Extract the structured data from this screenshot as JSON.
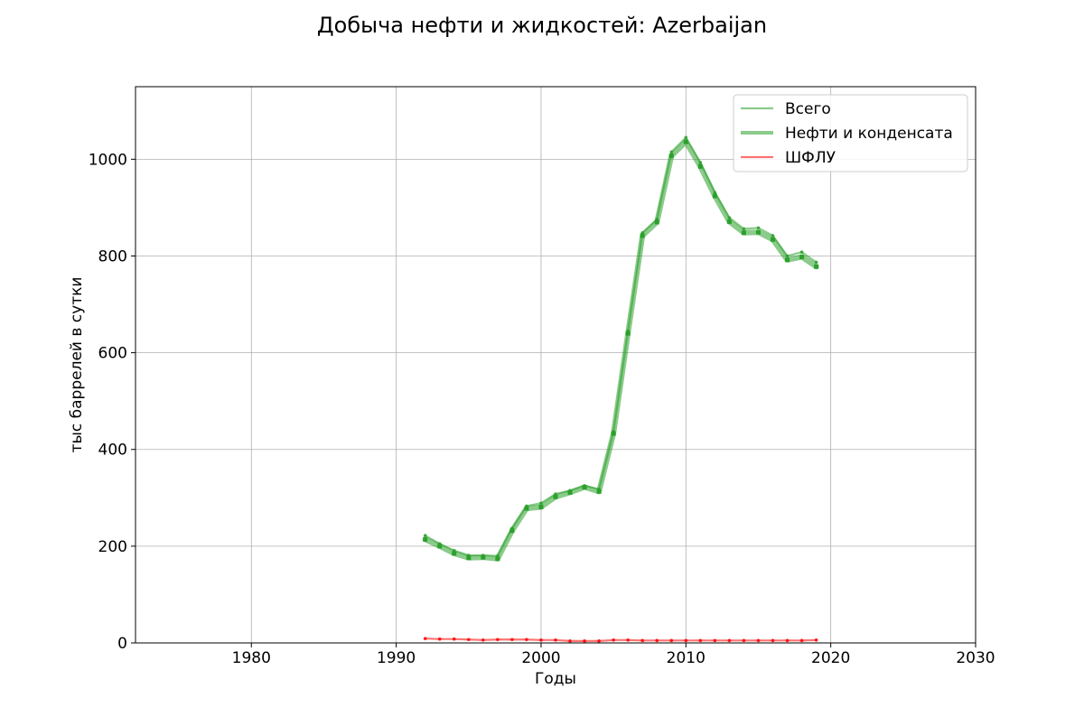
{
  "chart_data": {
    "type": "line",
    "title": "Добыча нефти и жидкостей: Azerbaijan",
    "xlabel": "Годы",
    "ylabel": "тыс баррелей в сутки",
    "xlim": [
      1972,
      2030
    ],
    "ylim": [
      0,
      1150
    ],
    "xticks": [
      1980,
      1990,
      2000,
      2010,
      2020,
      2030
    ],
    "yticks": [
      0,
      200,
      400,
      600,
      800,
      1000
    ],
    "grid": true,
    "legend_position": "top-right",
    "x": [
      1992,
      1993,
      1994,
      1995,
      1996,
      1997,
      1998,
      1999,
      2000,
      2001,
      2002,
      2003,
      2004,
      2005,
      2006,
      2007,
      2008,
      2009,
      2010,
      2011,
      2012,
      2013,
      2014,
      2015,
      2016,
      2017,
      2018,
      2019
    ],
    "series": [
      {
        "name": "Всего",
        "color": "#2ca02c",
        "style": "thin",
        "values": [
          222,
          205,
          191,
          181,
          181,
          180,
          237,
          283,
          289,
          308,
          315,
          325,
          318,
          437,
          645,
          848,
          876,
          1015,
          1045,
          993,
          931,
          879,
          856,
          858,
          842,
          800,
          808,
          787
        ]
      },
      {
        "name": "Нефти и конденсата",
        "color": "#2ca02c",
        "style": "thick",
        "values": [
          214,
          200,
          185,
          176,
          177,
          174,
          232,
          278,
          281,
          302,
          311,
          322,
          313,
          433,
          640,
          842,
          870,
          1007,
          1036,
          985,
          924,
          871,
          848,
          849,
          834,
          792,
          798,
          778
        ]
      },
      {
        "name": "ШФЛУ",
        "color": "#ff0000",
        "style": "thin",
        "values": [
          9,
          8,
          8,
          7,
          6,
          7,
          7,
          7,
          6,
          6,
          4,
          4,
          4,
          6,
          6,
          5,
          5,
          5,
          5,
          5,
          5,
          5,
          5,
          5,
          5,
          5,
          5,
          6
        ]
      }
    ]
  }
}
